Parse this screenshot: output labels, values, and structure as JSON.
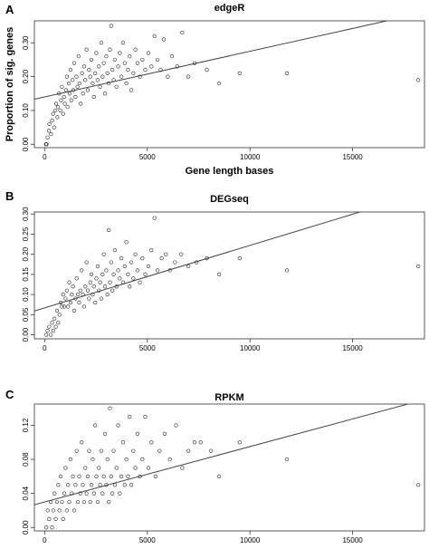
{
  "chart_data": [
    {
      "panel_label": "A",
      "type": "scatter",
      "title": "edgeR",
      "xlabel": "Gene length bases",
      "ylabel": "Proportion of sig. genes",
      "xlim": [
        -500,
        18500
      ],
      "ylim": [
        -0.01,
        0.365
      ],
      "xticks": [
        0,
        5000,
        10000,
        15000
      ],
      "xtick_labels": [
        "0",
        "5000",
        "10000",
        "15000"
      ],
      "yticks": [
        0.0,
        0.1,
        0.2,
        0.3
      ],
      "ytick_labels": [
        "0.00",
        "0.10",
        "0.20",
        "0.30"
      ],
      "fit_line": {
        "intercept": 0.14,
        "slope": 1.35e-05
      },
      "points": [
        [
          60,
          0.0
        ],
        [
          90,
          0.0
        ],
        [
          140,
          0.02
        ],
        [
          210,
          0.04
        ],
        [
          230,
          0.06
        ],
        [
          310,
          0.03
        ],
        [
          360,
          0.07
        ],
        [
          410,
          0.09
        ],
        [
          460,
          0.05
        ],
        [
          520,
          0.1
        ],
        [
          560,
          0.12
        ],
        [
          620,
          0.08
        ],
        [
          650,
          0.11
        ],
        [
          700,
          0.15
        ],
        [
          760,
          0.1
        ],
        [
          800,
          0.13
        ],
        [
          840,
          0.17
        ],
        [
          900,
          0.09
        ],
        [
          940,
          0.14
        ],
        [
          980,
          0.12
        ],
        [
          1040,
          0.16
        ],
        [
          1080,
          0.2
        ],
        [
          1120,
          0.11
        ],
        [
          1180,
          0.18
        ],
        [
          1220,
          0.15
        ],
        [
          1260,
          0.22
        ],
        [
          1300,
          0.13
        ],
        [
          1360,
          0.19
        ],
        [
          1400,
          0.16
        ],
        [
          1440,
          0.24
        ],
        [
          1500,
          0.14
        ],
        [
          1550,
          0.2
        ],
        [
          1600,
          0.17
        ],
        [
          1650,
          0.26
        ],
        [
          1700,
          0.18
        ],
        [
          1760,
          0.12
        ],
        [
          1820,
          0.21
        ],
        [
          1870,
          0.15
        ],
        [
          1920,
          0.23
        ],
        [
          1980,
          0.19
        ],
        [
          2040,
          0.28
        ],
        [
          2100,
          0.16
        ],
        [
          2160,
          0.22
        ],
        [
          2220,
          0.2
        ],
        [
          2280,
          0.25
        ],
        [
          2340,
          0.18
        ],
        [
          2400,
          0.14
        ],
        [
          2460,
          0.21
        ],
        [
          2520,
          0.27
        ],
        [
          2580,
          0.19
        ],
        [
          2640,
          0.23
        ],
        [
          2700,
          0.17
        ],
        [
          2760,
          0.3
        ],
        [
          2820,
          0.2
        ],
        [
          2880,
          0.24
        ],
        [
          2940,
          0.15
        ],
        [
          3000,
          0.26
        ],
        [
          3060,
          0.21
        ],
        [
          3120,
          0.18
        ],
        [
          3180,
          0.28
        ],
        [
          3240,
          0.35
        ],
        [
          3300,
          0.22
        ],
        [
          3360,
          0.19
        ],
        [
          3420,
          0.25
        ],
        [
          3500,
          0.17
        ],
        [
          3580,
          0.23
        ],
        [
          3660,
          0.27
        ],
        [
          3740,
          0.2
        ],
        [
          3820,
          0.3
        ],
        [
          3900,
          0.24
        ],
        [
          3980,
          0.18
        ],
        [
          4060,
          0.22
        ],
        [
          4140,
          0.26
        ],
        [
          4220,
          0.16
        ],
        [
          4320,
          0.21
        ],
        [
          4420,
          0.28
        ],
        [
          4520,
          0.24
        ],
        [
          4640,
          0.2
        ],
        [
          4760,
          0.25
        ],
        [
          4900,
          0.22
        ],
        [
          5050,
          0.27
        ],
        [
          5200,
          0.23
        ],
        [
          5350,
          0.32
        ],
        [
          5500,
          0.25
        ],
        [
          5650,
          0.22
        ],
        [
          5800,
          0.31
        ],
        [
          6000,
          0.2
        ],
        [
          6200,
          0.26
        ],
        [
          6450,
          0.23
        ],
        [
          6700,
          0.33
        ],
        [
          7000,
          0.2
        ],
        [
          7300,
          0.24
        ],
        [
          7900,
          0.22
        ],
        [
          8500,
          0.18
        ],
        [
          9500,
          0.21
        ],
        [
          11800,
          0.21
        ],
        [
          18200,
          0.19
        ]
      ]
    },
    {
      "panel_label": "B",
      "type": "scatter",
      "title": "DEGseq",
      "xlabel": "",
      "ylabel": "",
      "xlim": [
        -500,
        18500
      ],
      "ylim": [
        -0.01,
        0.305
      ],
      "xticks": [
        0,
        5000,
        10000,
        15000
      ],
      "xtick_labels": [
        "0",
        "5000",
        "10000",
        "15000"
      ],
      "yticks": [
        0.0,
        0.05,
        0.1,
        0.15,
        0.2,
        0.25,
        0.3
      ],
      "ytick_labels": [
        "0.00",
        "0.05",
        "0.10",
        "0.15",
        "0.20",
        "0.25",
        "0.30"
      ],
      "fit_line": {
        "intercept": 0.067,
        "slope": 1.55e-05
      },
      "points": [
        [
          80,
          0.0
        ],
        [
          140,
          0.01
        ],
        [
          220,
          0.02
        ],
        [
          300,
          0.0
        ],
        [
          360,
          0.03
        ],
        [
          420,
          0.01
        ],
        [
          480,
          0.04
        ],
        [
          540,
          0.02
        ],
        [
          600,
          0.06
        ],
        [
          660,
          0.03
        ],
        [
          720,
          0.05
        ],
        [
          780,
          0.08
        ],
        [
          840,
          0.07
        ],
        [
          900,
          0.1
        ],
        [
          960,
          0.07
        ],
        [
          1020,
          0.09
        ],
        [
          1080,
          0.11
        ],
        [
          1140,
          0.07
        ],
        [
          1200,
          0.13
        ],
        [
          1260,
          0.08
        ],
        [
          1320,
          0.1
        ],
        [
          1380,
          0.12
        ],
        [
          1440,
          0.06
        ],
        [
          1500,
          0.09
        ],
        [
          1560,
          0.14
        ],
        [
          1620,
          0.1
        ],
        [
          1680,
          0.08
        ],
        [
          1740,
          0.11
        ],
        [
          1800,
          0.16
        ],
        [
          1860,
          0.1
        ],
        [
          1920,
          0.07
        ],
        [
          1980,
          0.12
        ],
        [
          2040,
          0.18
        ],
        [
          2100,
          0.11
        ],
        [
          2160,
          0.09
        ],
        [
          2220,
          0.13
        ],
        [
          2280,
          0.15
        ],
        [
          2340,
          0.1
        ],
        [
          2400,
          0.12
        ],
        [
          2460,
          0.08
        ],
        [
          2520,
          0.14
        ],
        [
          2580,
          0.17
        ],
        [
          2640,
          0.11
        ],
        [
          2700,
          0.13
        ],
        [
          2760,
          0.09
        ],
        [
          2820,
          0.15
        ],
        [
          2880,
          0.2
        ],
        [
          2940,
          0.12
        ],
        [
          3000,
          0.16
        ],
        [
          3060,
          0.1
        ],
        [
          3120,
          0.26
        ],
        [
          3180,
          0.13
        ],
        [
          3240,
          0.18
        ],
        [
          3300,
          0.11
        ],
        [
          3360,
          0.15
        ],
        [
          3420,
          0.21
        ],
        [
          3500,
          0.12
        ],
        [
          3580,
          0.16
        ],
        [
          3660,
          0.14
        ],
        [
          3740,
          0.19
        ],
        [
          3820,
          0.13
        ],
        [
          3900,
          0.17
        ],
        [
          3980,
          0.23
        ],
        [
          4060,
          0.15
        ],
        [
          4140,
          0.12
        ],
        [
          4220,
          0.18
        ],
        [
          4320,
          0.14
        ],
        [
          4420,
          0.2
        ],
        [
          4520,
          0.16
        ],
        [
          4640,
          0.13
        ],
        [
          4760,
          0.19
        ],
        [
          4900,
          0.15
        ],
        [
          5050,
          0.17
        ],
        [
          5200,
          0.21
        ],
        [
          5350,
          0.29
        ],
        [
          5500,
          0.16
        ],
        [
          5700,
          0.19
        ],
        [
          5900,
          0.2
        ],
        [
          6100,
          0.16
        ],
        [
          6350,
          0.18
        ],
        [
          6650,
          0.2
        ],
        [
          7000,
          0.17
        ],
        [
          7400,
          0.18
        ],
        [
          7900,
          0.19
        ],
        [
          8500,
          0.15
        ],
        [
          9500,
          0.19
        ],
        [
          11800,
          0.16
        ],
        [
          18200,
          0.17
        ]
      ]
    },
    {
      "panel_label": "C",
      "type": "scatter",
      "title": "RPKM",
      "xlabel": "",
      "ylabel": "",
      "xlim": [
        -500,
        18500
      ],
      "ylim": [
        -0.004,
        0.145
      ],
      "xticks": [
        0,
        5000,
        10000,
        15000
      ],
      "xtick_labels": [
        "0",
        "5000",
        "10000",
        "15000"
      ],
      "yticks": [
        0.0,
        0.04,
        0.08,
        0.12
      ],
      "ytick_labels": [
        "0.00",
        "0.04",
        "0.08",
        "0.12"
      ],
      "fit_line": {
        "intercept": 0.03,
        "slope": 6.5e-06
      },
      "points": [
        [
          80,
          0.0
        ],
        [
          150,
          0.02
        ],
        [
          220,
          0.01
        ],
        [
          300,
          0.03
        ],
        [
          360,
          0.0
        ],
        [
          420,
          0.02
        ],
        [
          480,
          0.04
        ],
        [
          540,
          0.01
        ],
        [
          600,
          0.03
        ],
        [
          660,
          0.05
        ],
        [
          720,
          0.02
        ],
        [
          780,
          0.06
        ],
        [
          840,
          0.03
        ],
        [
          900,
          0.01
        ],
        [
          960,
          0.04
        ],
        [
          1020,
          0.07
        ],
        [
          1080,
          0.02
        ],
        [
          1140,
          0.05
        ],
        [
          1200,
          0.03
        ],
        [
          1260,
          0.08
        ],
        [
          1320,
          0.04
        ],
        [
          1380,
          0.06
        ],
        [
          1440,
          0.02
        ],
        [
          1500,
          0.05
        ],
        [
          1560,
          0.09
        ],
        [
          1620,
          0.03
        ],
        [
          1680,
          0.06
        ],
        [
          1740,
          0.04
        ],
        [
          1800,
          0.1
        ],
        [
          1860,
          0.05
        ],
        [
          1920,
          0.03
        ],
        [
          1980,
          0.07
        ],
        [
          2040,
          0.04
        ],
        [
          2100,
          0.06
        ],
        [
          2160,
          0.09
        ],
        [
          2220,
          0.03
        ],
        [
          2280,
          0.05
        ],
        [
          2340,
          0.08
        ],
        [
          2400,
          0.04
        ],
        [
          2460,
          0.12
        ],
        [
          2520,
          0.06
        ],
        [
          2580,
          0.03
        ],
        [
          2640,
          0.07
        ],
        [
          2700,
          0.05
        ],
        [
          2760,
          0.09
        ],
        [
          2820,
          0.04
        ],
        [
          2880,
          0.06
        ],
        [
          2940,
          0.11
        ],
        [
          3000,
          0.05
        ],
        [
          3060,
          0.08
        ],
        [
          3120,
          0.03
        ],
        [
          3180,
          0.14
        ],
        [
          3240,
          0.06
        ],
        [
          3300,
          0.04
        ],
        [
          3360,
          0.09
        ],
        [
          3420,
          0.05
        ],
        [
          3500,
          0.07
        ],
        [
          3580,
          0.12
        ],
        [
          3660,
          0.04
        ],
        [
          3740,
          0.06
        ],
        [
          3820,
          0.1
        ],
        [
          3900,
          0.05
        ],
        [
          3980,
          0.08
        ],
        [
          4060,
          0.06
        ],
        [
          4140,
          0.13
        ],
        [
          4220,
          0.05
        ],
        [
          4320,
          0.09
        ],
        [
          4420,
          0.07
        ],
        [
          4520,
          0.11
        ],
        [
          4640,
          0.06
        ],
        [
          4760,
          0.08
        ],
        [
          4900,
          0.13
        ],
        [
          5050,
          0.07
        ],
        [
          5200,
          0.1
        ],
        [
          5400,
          0.06
        ],
        [
          5600,
          0.09
        ],
        [
          5850,
          0.11
        ],
        [
          6100,
          0.08
        ],
        [
          6400,
          0.12
        ],
        [
          6700,
          0.07
        ],
        [
          7000,
          0.09
        ],
        [
          7300,
          0.1
        ],
        [
          7600,
          0.1
        ],
        [
          8100,
          0.09
        ],
        [
          8500,
          0.06
        ],
        [
          9500,
          0.1
        ],
        [
          11800,
          0.08
        ],
        [
          18200,
          0.05
        ]
      ]
    }
  ]
}
